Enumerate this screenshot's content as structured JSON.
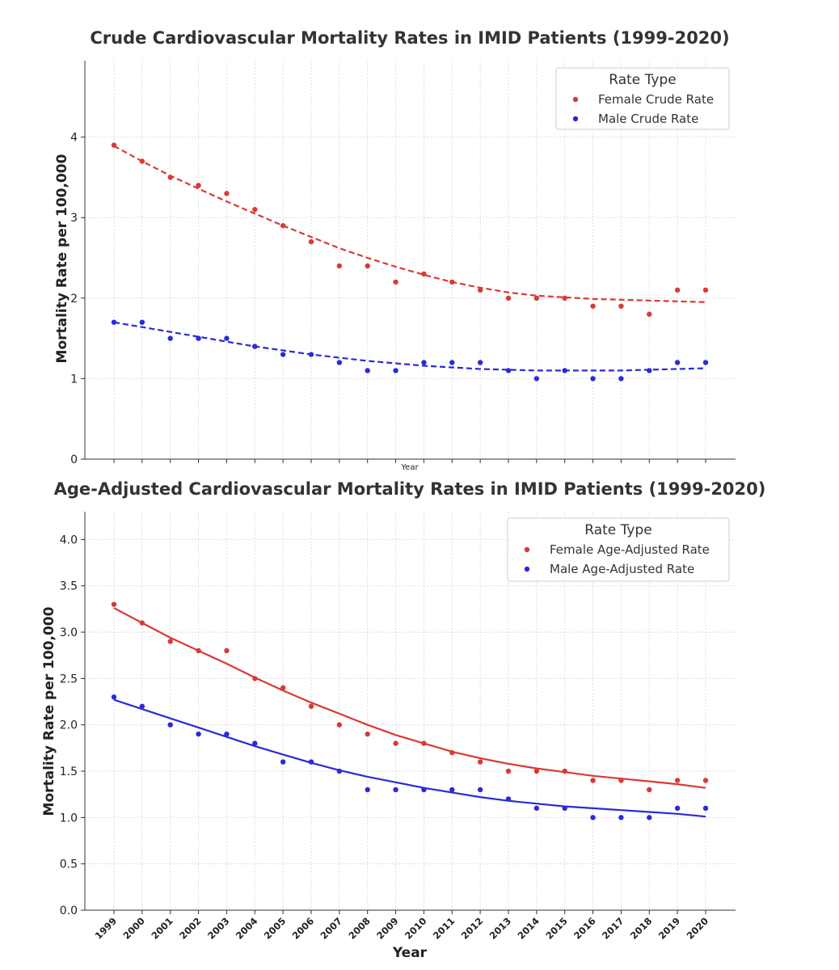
{
  "chart_data": [
    {
      "type": "scatter",
      "title": "Crude Cardiovascular Mortality Rates in IMID Patients (1999-2020)",
      "xlabel": "Year",
      "ylabel": "Mortality Rate per 100,000",
      "x": [
        1999,
        2000,
        2001,
        2002,
        2003,
        2004,
        2005,
        2006,
        2007,
        2008,
        2009,
        2010,
        2011,
        2012,
        2013,
        2014,
        2015,
        2016,
        2017,
        2018,
        2019,
        2020
      ],
      "ylim": [
        0,
        4.95
      ],
      "yticks": [
        "0",
        "1",
        "2",
        "3",
        "4"
      ],
      "ytick_values": [
        0,
        1,
        2,
        3,
        4
      ],
      "show_xtick_labels": false,
      "grid": true,
      "legend": {
        "title": "Rate Type",
        "placement": "top-right"
      },
      "trend_style": "dashed",
      "series": [
        {
          "name": "Female Crude Rate",
          "color": "#d93a35",
          "values": [
            3.9,
            3.7,
            3.5,
            3.4,
            3.3,
            3.1,
            2.9,
            2.7,
            2.4,
            2.4,
            2.2,
            2.3,
            2.2,
            2.1,
            2.0,
            2.0,
            2.0,
            1.9,
            1.9,
            1.8,
            2.1,
            2.1
          ],
          "trend": [
            3.89,
            3.7,
            3.52,
            3.36,
            3.2,
            3.05,
            2.9,
            2.76,
            2.62,
            2.5,
            2.39,
            2.29,
            2.2,
            2.13,
            2.07,
            2.03,
            2.01,
            1.99,
            1.98,
            1.97,
            1.96,
            1.95
          ]
        },
        {
          "name": "Male Crude Rate",
          "color": "#2a2ad8",
          "values": [
            1.7,
            1.7,
            1.5,
            1.5,
            1.5,
            1.4,
            1.3,
            1.3,
            1.2,
            1.1,
            1.1,
            1.2,
            1.2,
            1.2,
            1.1,
            1.0,
            1.1,
            1.0,
            1.0,
            1.1,
            1.2,
            1.2
          ],
          "trend": [
            1.7,
            1.64,
            1.58,
            1.52,
            1.46,
            1.4,
            1.35,
            1.3,
            1.26,
            1.22,
            1.19,
            1.16,
            1.14,
            1.12,
            1.11,
            1.1,
            1.1,
            1.1,
            1.1,
            1.11,
            1.12,
            1.13
          ]
        }
      ]
    },
    {
      "type": "scatter",
      "title": "Age-Adjusted Cardiovascular Mortality Rates in IMID Patients (1999-2020)",
      "xlabel": "Year",
      "ylabel": "Mortality Rate per 100,000",
      "x": [
        1999,
        2000,
        2001,
        2002,
        2003,
        2004,
        2005,
        2006,
        2007,
        2008,
        2009,
        2010,
        2011,
        2012,
        2013,
        2014,
        2015,
        2016,
        2017,
        2018,
        2019,
        2020
      ],
      "ylim": [
        0,
        4.3
      ],
      "yticks": [
        "0.0",
        "0.5",
        "1.0",
        "1.5",
        "2.0",
        "2.5",
        "3.0",
        "3.5",
        "4.0"
      ],
      "ytick_values": [
        0,
        0.5,
        1,
        1.5,
        2,
        2.5,
        3,
        3.5,
        4
      ],
      "xtick_labels": [
        "1999",
        "2000",
        "2001",
        "2002",
        "2003",
        "2004",
        "2005",
        "2006",
        "2007",
        "2008",
        "2009",
        "2010",
        "2011",
        "2012",
        "2013",
        "2014",
        "2015",
        "2016",
        "2017",
        "2018",
        "2019",
        "2020"
      ],
      "show_xtick_labels": true,
      "grid": true,
      "legend": {
        "title": "Rate Type",
        "placement": "top-right"
      },
      "trend_style": "solid",
      "series": [
        {
          "name": "Female Age-Adjusted Rate",
          "color": "#d93a35",
          "values": [
            3.3,
            3.1,
            2.9,
            2.8,
            2.8,
            2.5,
            2.4,
            2.2,
            2.0,
            1.9,
            1.8,
            1.8,
            1.7,
            1.6,
            1.5,
            1.5,
            1.5,
            1.4,
            1.4,
            1.3,
            1.4,
            1.4
          ],
          "trend": [
            3.26,
            3.1,
            2.94,
            2.8,
            2.66,
            2.51,
            2.37,
            2.24,
            2.12,
            2.0,
            1.89,
            1.8,
            1.71,
            1.64,
            1.58,
            1.53,
            1.49,
            1.45,
            1.42,
            1.39,
            1.36,
            1.32
          ]
        },
        {
          "name": "Male Age-Adjusted Rate",
          "color": "#2a2ad8",
          "values": [
            2.3,
            2.2,
            2.0,
            1.9,
            1.9,
            1.8,
            1.6,
            1.6,
            1.5,
            1.3,
            1.3,
            1.3,
            1.3,
            1.3,
            1.2,
            1.1,
            1.1,
            1.0,
            1.0,
            1.0,
            1.1,
            1.1
          ],
          "trend": [
            2.27,
            2.17,
            2.07,
            1.97,
            1.87,
            1.77,
            1.68,
            1.59,
            1.51,
            1.44,
            1.38,
            1.32,
            1.27,
            1.22,
            1.18,
            1.15,
            1.12,
            1.1,
            1.08,
            1.06,
            1.04,
            1.01
          ]
        }
      ]
    }
  ]
}
